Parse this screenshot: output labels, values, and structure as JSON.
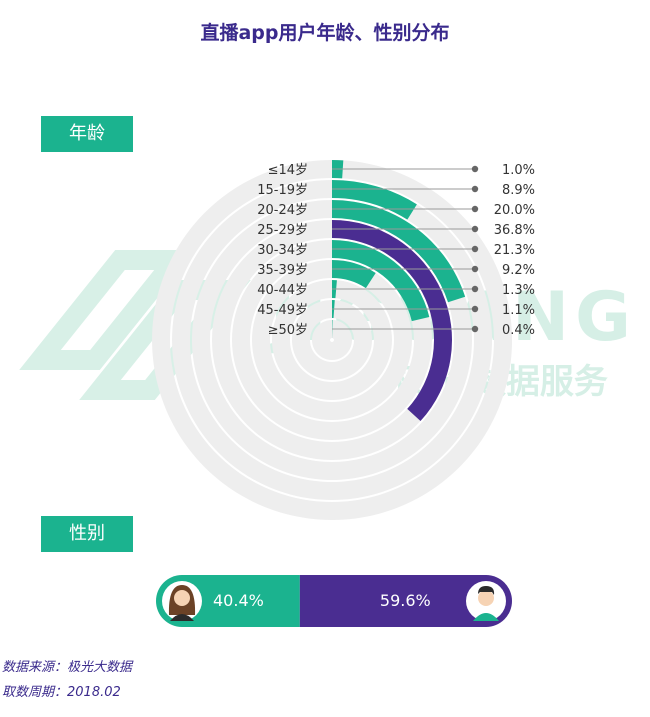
{
  "title": "直播app用户年龄、性别分布",
  "sections": {
    "age_label": "年龄",
    "gender_label": "性别"
  },
  "watermark": {
    "brand": "JIGUANG",
    "service": "极光 数据服务"
  },
  "colors": {
    "green": "#1bb38f",
    "purple": "#4a2d91",
    "title": "#3a2a8c",
    "track": "#eeeeee",
    "watermark": "#d6efe6"
  },
  "chart_data": [
    {
      "type": "radial-bar",
      "title": "年龄",
      "categories": [
        "≤14岁",
        "15-19岁",
        "20-24岁",
        "25-29岁",
        "30-34岁",
        "35-39岁",
        "40-44岁",
        "45-49岁",
        "≥50岁"
      ],
      "values": [
        1.0,
        8.9,
        20.0,
        36.8,
        21.3,
        9.2,
        1.3,
        1.1,
        0.4
      ],
      "value_labels": [
        "1.0%",
        "8.9%",
        "20.0%",
        "36.8%",
        "21.3%",
        "9.2%",
        "1.3%",
        "1.1%",
        "0.4%"
      ],
      "highlight_category": "25-29岁",
      "max": 100
    },
    {
      "type": "stacked-bar",
      "title": "性别",
      "categories": [
        "female",
        "male"
      ],
      "values": [
        40.4,
        59.6
      ],
      "value_labels": [
        "40.4%",
        "59.6%"
      ]
    }
  ],
  "footer": {
    "source": "数据来源：极光大数据",
    "period": "取数周期：2018.02"
  }
}
